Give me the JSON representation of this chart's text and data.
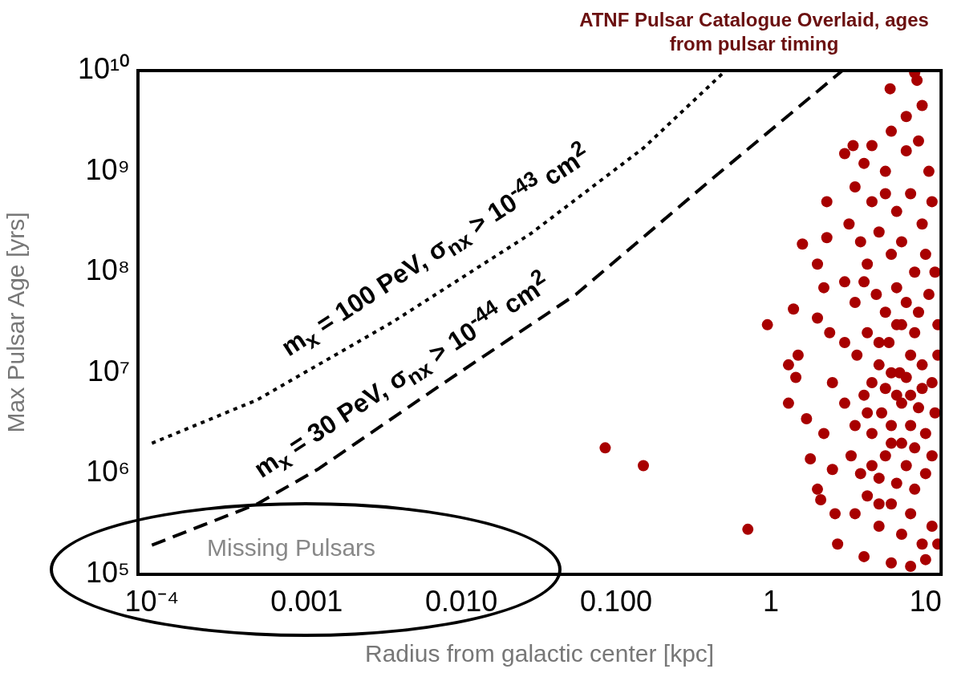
{
  "chart_data": {
    "type": "scatter",
    "title": "ATNF Pulsar Catalogue Overlaid, ages from pulsar timing",
    "xlabel": "Radius from galactic center [kpc]",
    "ylabel": "Max Pulsar Age [yrs]",
    "log": "xy",
    "grid": false,
    "legend": false,
    "xlim": [
      8.13e-05,
      12.6
    ],
    "ylim": [
      100000,
      10000000000
    ],
    "xticks": [
      {
        "value": 0.0001,
        "label": "10⁻⁴"
      },
      {
        "value": 0.001,
        "label": "0.001"
      },
      {
        "value": 0.01,
        "label": "0.010"
      },
      {
        "value": 0.1,
        "label": "0.100"
      },
      1,
      10
    ],
    "yticks": [
      {
        "value": 100000,
        "label": "10⁵"
      },
      {
        "value": 1000000,
        "label": "10⁶"
      },
      {
        "value": 10000000,
        "label": "10⁷"
      },
      {
        "value": 100000000,
        "label": "10⁸"
      },
      {
        "value": 1000000000,
        "label": "10⁹"
      },
      {
        "value": 10000000000,
        "label": "10¹⁰"
      }
    ],
    "annotations": [
      "Missing Pulsars"
    ],
    "series": [
      {
        "type": "scatter",
        "color": "#a80000",
        "marker": "circle",
        "x": [
          0.085,
          0.15,
          0.71,
          0.95,
          1.4,
          1.6,
          1.3,
          1.45,
          1.3,
          1.5,
          1.7,
          1.8,
          2.0,
          2.1,
          2.3,
          2.3,
          2.0,
          2.2,
          2.0,
          2.4,
          2.5,
          2.2,
          2.5,
          2.6,
          2.7,
          5.9,
          8.5,
          8.8,
          9.5,
          7.5,
          6.0,
          4.5,
          3.4,
          3.0,
          4.0,
          5.5,
          7.5,
          9.0,
          3.5,
          4.5,
          5.5,
          6.5,
          8.0,
          9.5,
          11,
          10.5,
          3.2,
          3.8,
          4.2,
          5.0,
          6.0,
          7.0,
          8.5,
          10,
          11.5,
          3.0,
          3.5,
          4.0,
          4.8,
          5.5,
          6.5,
          7.5,
          9,
          10.5,
          12,
          3.0,
          3.6,
          4.2,
          5.0,
          5.8,
          6.8,
          8,
          9.5,
          11,
          12,
          3.0,
          3.5,
          4.0,
          4.5,
          5.2,
          6.0,
          7.0,
          8.0,
          9.0,
          10,
          11.5,
          3.3,
          3.8,
          4.5,
          5.5,
          6.5,
          7.5,
          8.5,
          10,
          11,
          3.5,
          4.2,
          5,
          6,
          7,
          8,
          9.5,
          11,
          4,
          6,
          8,
          10,
          12,
          4.5,
          5.5,
          6.5,
          7.5,
          5,
          6,
          7,
          8.5,
          5,
          6,
          7,
          8.5,
          9.5,
          4.2,
          5,
          6.5,
          8
        ],
        "values": [
          1800000,
          1200000,
          280000,
          30000000,
          43000000,
          190000000,
          12000000,
          9000000,
          5000000,
          15000000,
          3500000,
          1400000,
          700000,
          550000,
          500000000,
          220000000,
          120000000,
          70000000,
          35000000,
          25000000,
          8000000,
          2500000,
          1100000,
          400000,
          200000,
          6600000000,
          9500000000,
          8000000000,
          4500000000,
          3500000000,
          2500000000,
          1800000000,
          1800000000,
          1500000000,
          1200000000,
          1000000000,
          1600000000,
          2000000000,
          700000000,
          500000000,
          600000000,
          400000000,
          600000000,
          300000000,
          500000000,
          1000000000,
          300000000,
          200000000,
          120000000,
          250000000,
          150000000,
          200000000,
          100000000,
          150000000,
          100000000,
          80000000,
          50000000,
          80000000,
          60000000,
          40000000,
          70000000,
          50000000,
          40000000,
          60000000,
          30000000,
          20000000,
          15000000,
          25000000,
          12000000,
          20000000,
          10000000,
          15000000,
          12000000,
          8000000,
          15000000,
          5000000,
          3000000,
          6000000,
          2500000,
          4000000,
          3000000,
          5000000,
          3000000,
          4500000,
          2500000,
          4000000,
          1500000,
          1000000,
          1200000,
          1500000,
          800000,
          1200000,
          700000,
          1000000,
          1500000,
          400000,
          600000,
          300000,
          500000,
          250000,
          400000,
          200000,
          300000,
          150000,
          130000,
          120000,
          140000,
          200000,
          8000000,
          7000000,
          6000000,
          9000000,
          20000000,
          10000000,
          30000000,
          25000000,
          500000,
          2000000,
          2000000,
          1800000,
          7000000,
          4000000,
          900000,
          30000000,
          6000000
        ]
      },
      {
        "type": "line",
        "name": "m$_{x}$ = 100 PeV, σ$_{nx}$ > 10$^{-43}$ cm$^{2}$",
        "color": "#000000",
        "line_style": "dotted",
        "marker": "none",
        "x": [
          0.0001,
          0.00048,
          0.0036,
          0.028,
          0.15,
          0.51
        ],
        "values": [
          2000000,
          5400000,
          32000000,
          240000000,
          1700000000,
          10000000000
        ]
      },
      {
        "type": "line",
        "name": "m$_{x}$ = 30 PeV, σ$_{nx}$ > 10$^{-44}$ cm$^{2}$",
        "color": "#000000",
        "line_style": "dashed",
        "marker": "none",
        "x": [
          0.0001,
          0.00048,
          0.0012,
          0.0072,
          0.055,
          0.42,
          2.9
        ],
        "values": [
          195000,
          500000,
          1120000,
          7400000,
          60000000,
          850000000,
          10000000000
        ]
      }
    ]
  }
}
